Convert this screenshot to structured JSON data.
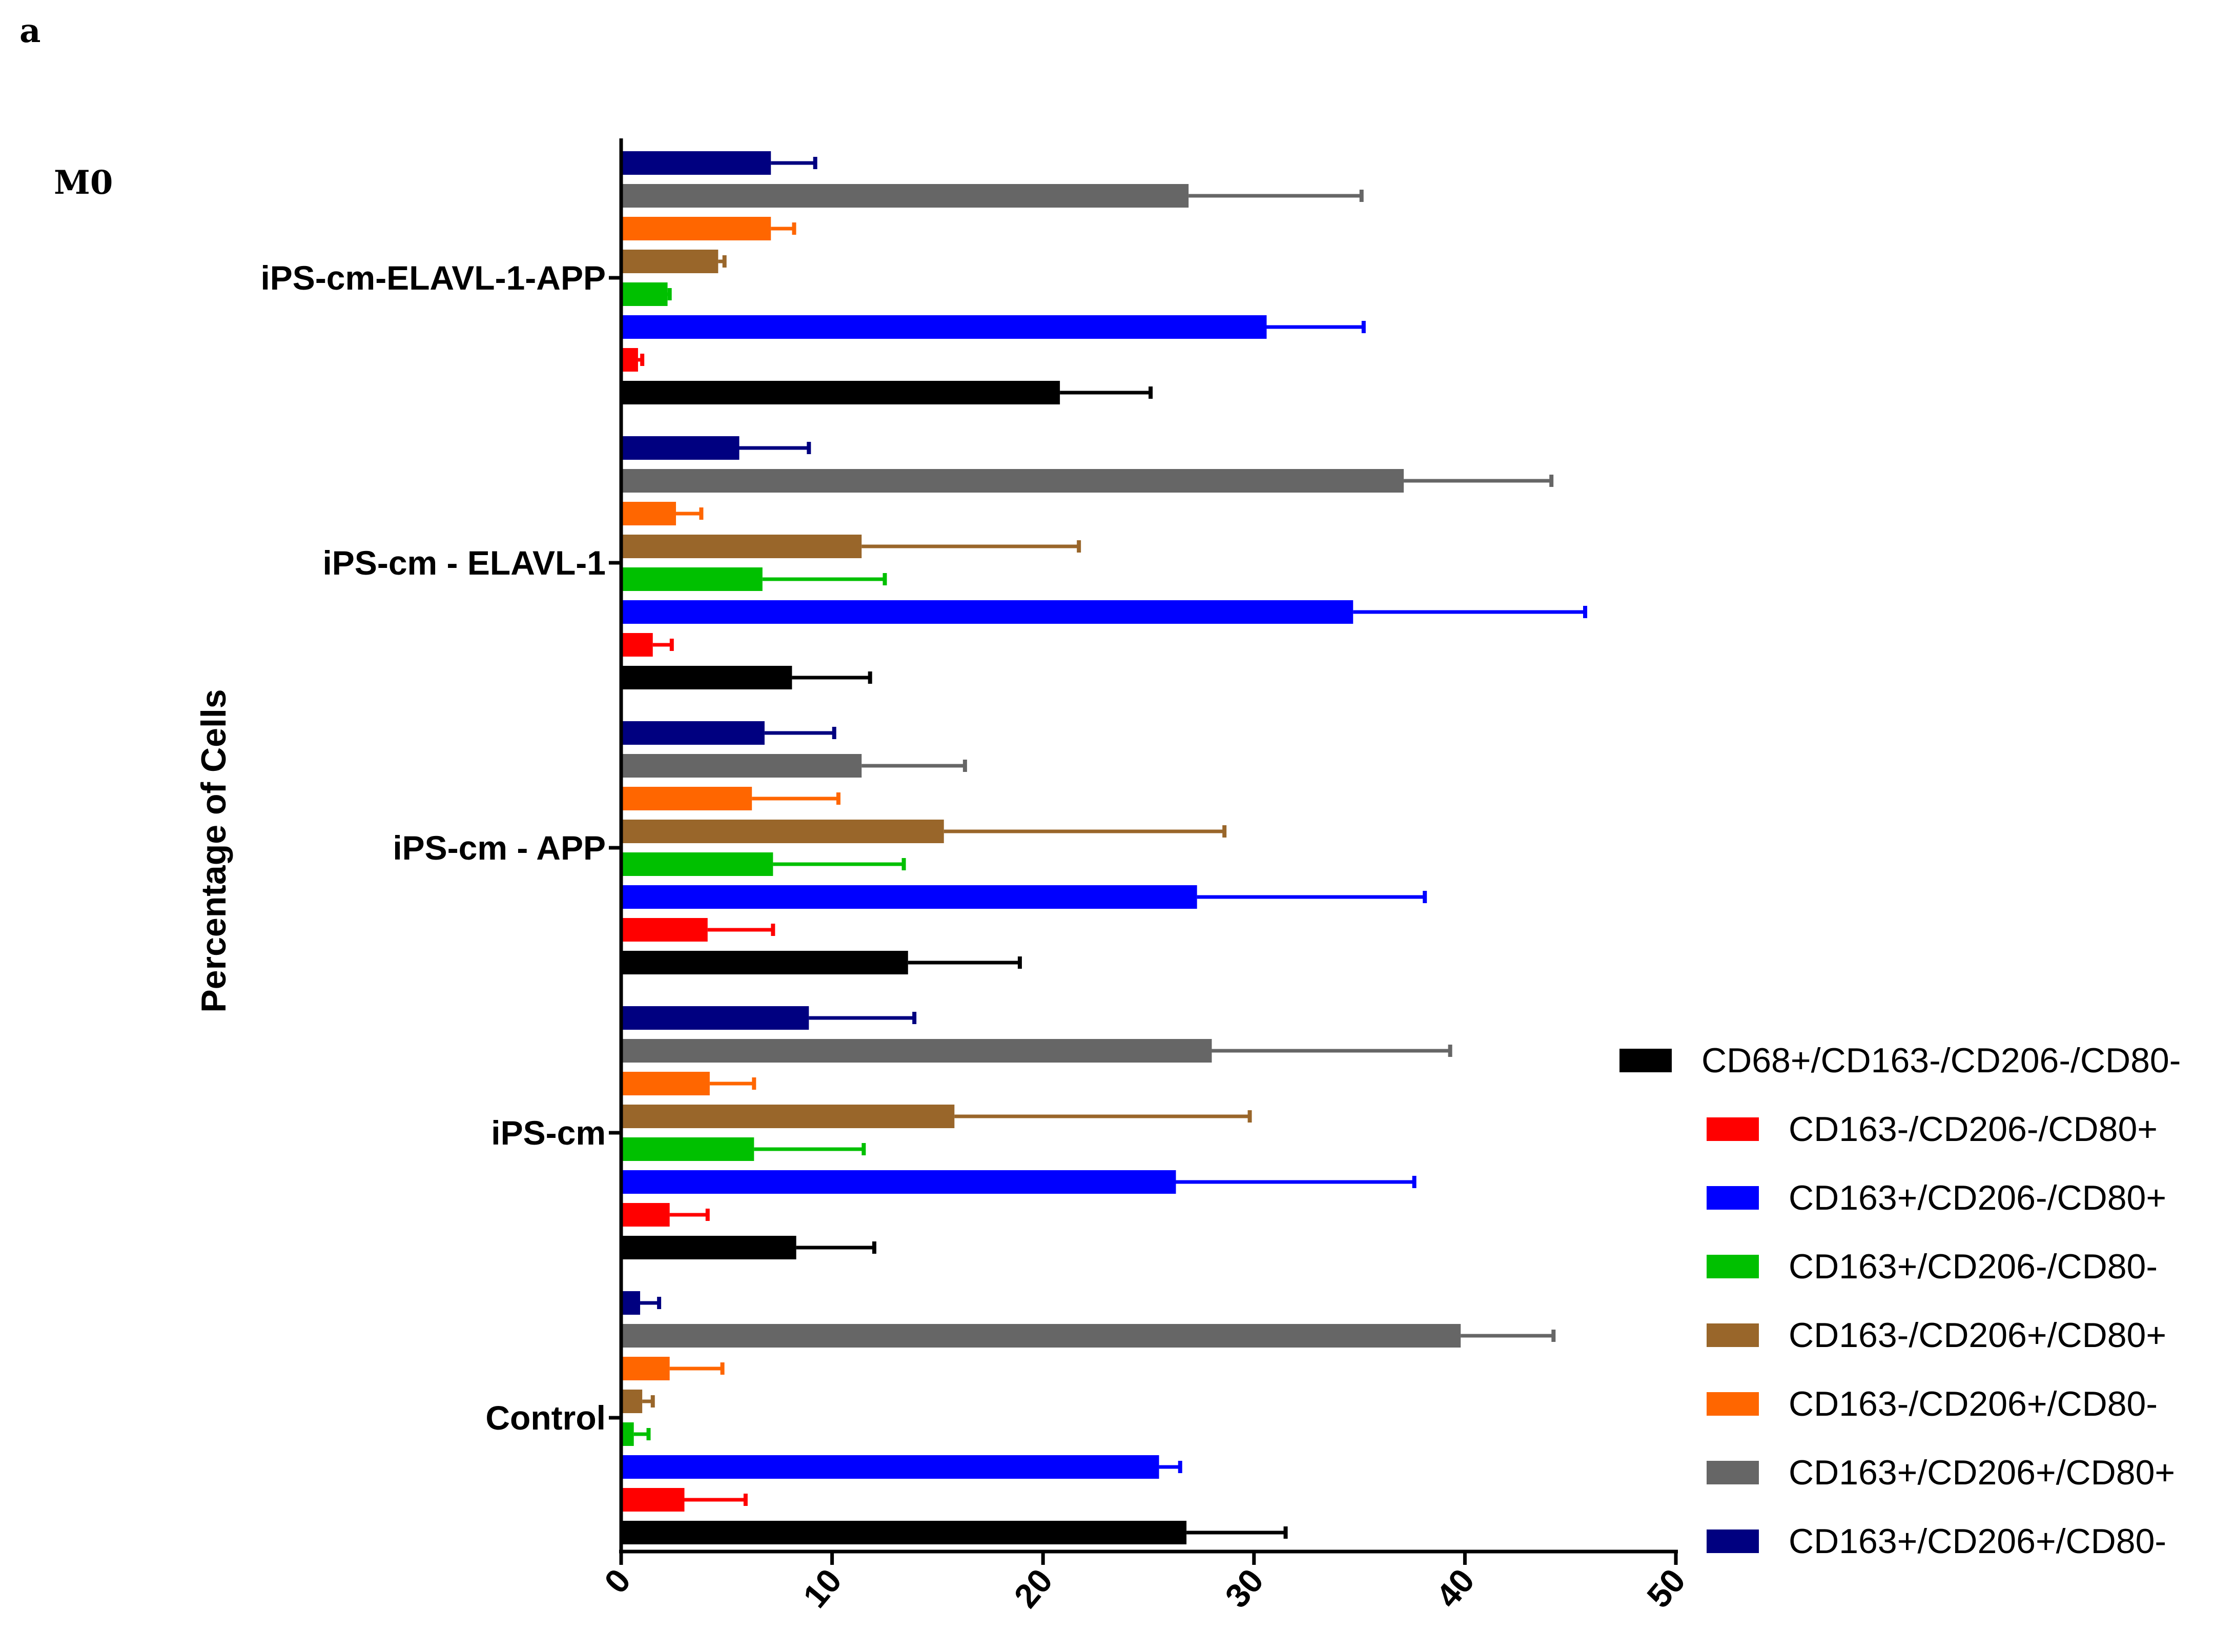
{
  "panel_label": "a",
  "colors": {
    "CD68+/CD163-/CD206-/CD80-": "#000000",
    "CD163-/CD206-/CD80+": "#ff0000",
    "CD163+/CD206-/CD80+": "#0000ff",
    "CD163+/CD206-/CD80-": "#00c000",
    "CD163-/CD206+/CD80+": "#99662a",
    "CD163-/CD206+/CD80-": "#ff6600",
    "CD163+/CD206+/CD80+": "#666666",
    "CD163+/CD206+/CD80-": "#000080"
  },
  "chart_data": {
    "type": "bar",
    "orientation": "horizontal",
    "title": "M0",
    "xlabel": "",
    "ylabel": "Percentage of Cells",
    "xlim": [
      0,
      50
    ],
    "xticks": [
      "0",
      "10",
      "20",
      "30",
      "40",
      "50"
    ],
    "categories": [
      "Control",
      "iPS-cm",
      "iPS-cm - APP",
      "iPS-cm - ELAVL-1",
      "iPS-cm-ELAVL-1-APP"
    ],
    "legend_position": "right",
    "series": [
      {
        "name": "CD68+/CD163-/CD206-/CD80-",
        "values": [
          26.8,
          8.3,
          13.6,
          8.1,
          20.8
        ],
        "errors": [
          4.7,
          3.7,
          5.3,
          3.7,
          4.3
        ]
      },
      {
        "name": "CD163-/CD206-/CD80+",
        "values": [
          3.0,
          2.3,
          4.1,
          1.5,
          0.8
        ],
        "errors": [
          2.9,
          1.8,
          3.1,
          0.9,
          0.2
        ]
      },
      {
        "name": "CD163+/CD206-/CD80+",
        "values": [
          25.5,
          26.3,
          27.3,
          34.7,
          30.6
        ],
        "errors": [
          1.0,
          11.3,
          10.8,
          11.0,
          4.6
        ]
      },
      {
        "name": "CD163+/CD206-/CD80-",
        "values": [
          0.6,
          6.3,
          7.2,
          6.7,
          2.2
        ],
        "errors": [
          0.7,
          5.2,
          6.2,
          5.8,
          0.1
        ]
      },
      {
        "name": "CD163-/CD206+/CD80+",
        "values": [
          1.0,
          15.8,
          15.3,
          11.4,
          4.6
        ],
        "errors": [
          0.5,
          14.0,
          13.3,
          10.3,
          0.3
        ]
      },
      {
        "name": "CD163-/CD206+/CD80-",
        "values": [
          2.3,
          4.2,
          6.2,
          2.6,
          7.1
        ],
        "errors": [
          2.5,
          2.1,
          4.1,
          1.2,
          1.1
        ]
      },
      {
        "name": "CD163+/CD206+/CD80+",
        "values": [
          39.8,
          28.0,
          11.4,
          37.1,
          26.9
        ],
        "errors": [
          4.4,
          11.3,
          4.9,
          7.0,
          8.2
        ]
      },
      {
        "name": "CD163+/CD206+/CD80-",
        "values": [
          0.9,
          8.9,
          6.8,
          5.6,
          7.1
        ],
        "errors": [
          0.9,
          5.0,
          3.3,
          3.3,
          2.1
        ]
      }
    ]
  }
}
